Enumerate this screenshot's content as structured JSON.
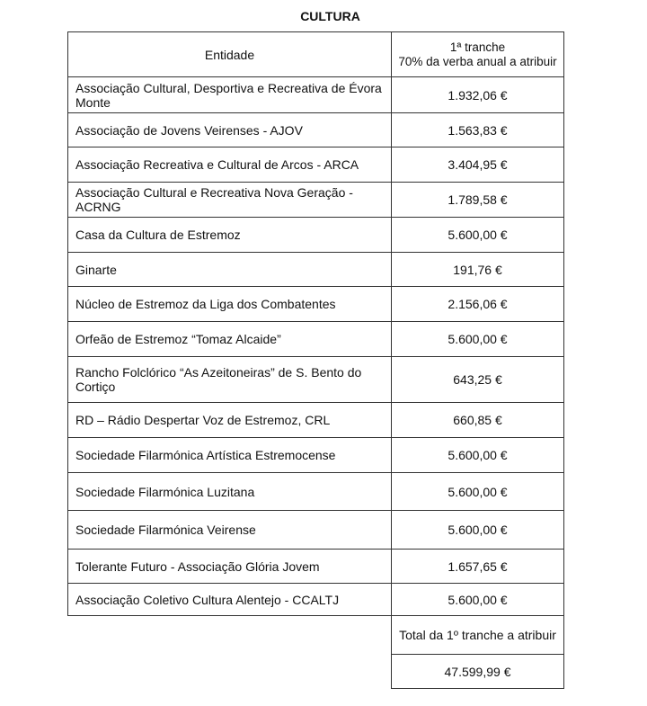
{
  "title": "CULTURA",
  "table": {
    "headers": [
      "Entidade",
      "1ª tranche\n70% da verba anual a atribuir"
    ],
    "rows": [
      {
        "entity": "Associação Cultural, Desportiva e Recreativa de Évora Monte",
        "amount": "1.932,06 €"
      },
      {
        "entity": "Associação de Jovens Veirenses - AJOV",
        "amount": "1.563,83 €"
      },
      {
        "entity": "Associação Recreativa e Cultural de Arcos - ARCA",
        "amount": "3.404,95 €"
      },
      {
        "entity": "Associação Cultural e Recreativa Nova Geração - ACRNG",
        "amount": "1.789,58 €"
      },
      {
        "entity": "Casa da Cultura de Estremoz",
        "amount": "5.600,00 €"
      },
      {
        "entity": "Ginarte",
        "amount": "191,76 €"
      },
      {
        "entity": "Núcleo de Estremoz da Liga dos Combatentes",
        "amount": "2.156,06 €"
      },
      {
        "entity": "Orfeão de Estremoz “Tomaz Alcaide”",
        "amount": "5.600,00 €"
      },
      {
        "entity": "Rancho Folclórico “As Azeitoneiras” de S. Bento do Cortiço",
        "amount": "643,25 €"
      },
      {
        "entity": "RD – Rádio Despertar Voz de Estremoz, CRL",
        "amount": "660,85 €"
      },
      {
        "entity": "Sociedade Filarmónica Artística Estremocense",
        "amount": "5.600,00 €"
      },
      {
        "entity": "Sociedade Filarmónica Luzitana",
        "amount": "5.600,00 €"
      },
      {
        "entity": "Sociedade Filarmónica Veirense",
        "amount": "5.600,00 €"
      },
      {
        "entity": "Tolerante Futuro - Associação Glória Jovem",
        "amount": "1.657,65 €"
      },
      {
        "entity": "Associação Coletivo Cultura Alentejo - CCALTJ",
        "amount": "5.600,00 €"
      }
    ],
    "total_label": "Total da 1º tranche a atribuir",
    "total_value": "47.599,99 €"
  }
}
